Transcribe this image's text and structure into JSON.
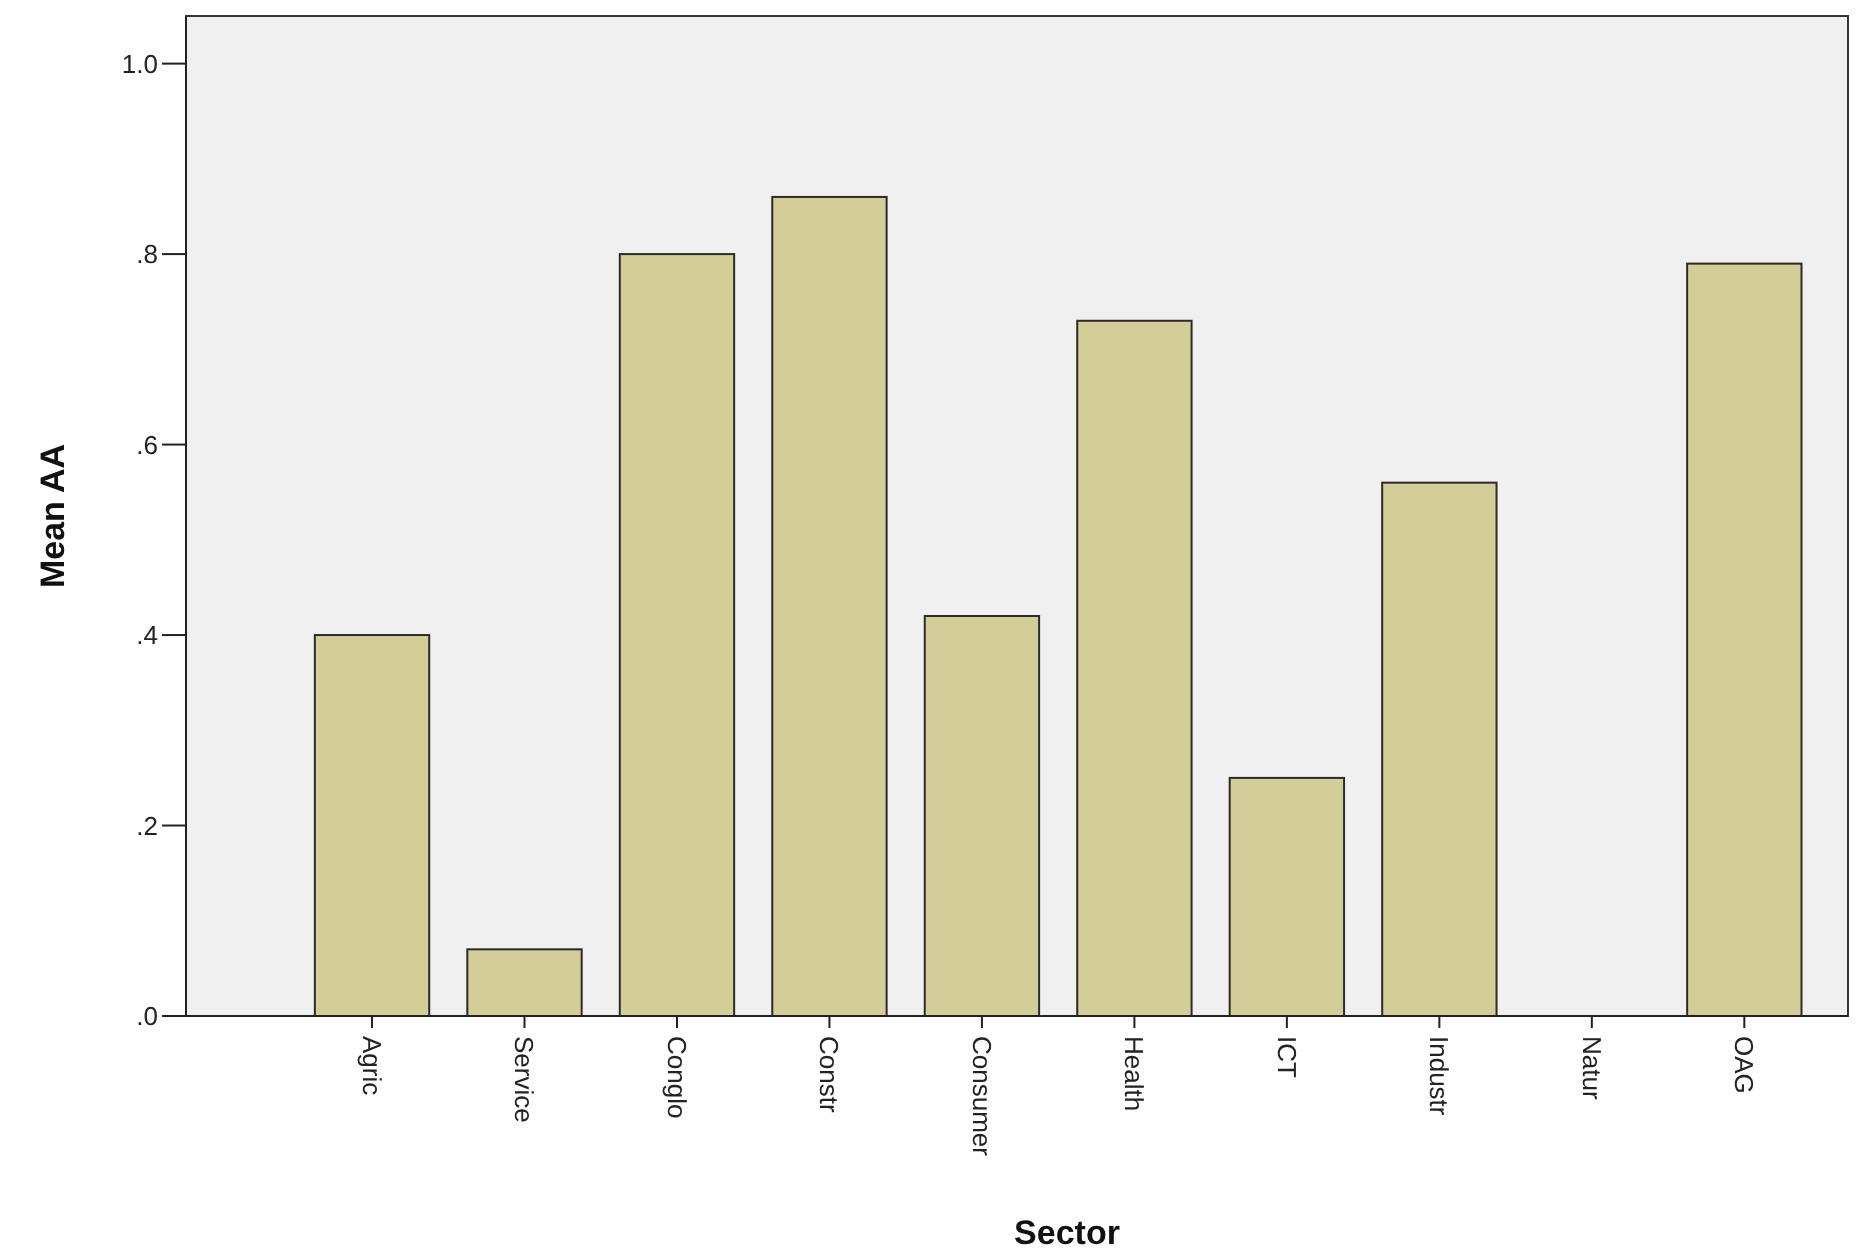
{
  "chart_data": {
    "type": "bar",
    "xlabel": "Sector",
    "ylabel": "Mean AA",
    "categories": [
      "Agric",
      "Service",
      "Conglo",
      "Constr",
      "Consumer",
      "Health",
      "ICT",
      "Industr",
      "Natur",
      "OAG"
    ],
    "values": [
      0.4,
      0.07,
      0.8,
      0.86,
      0.42,
      0.73,
      0.25,
      0.56,
      0,
      0.79
    ],
    "color": "#d3ce97",
    "ylim": [
      0,
      1.05
    ],
    "yticks": [
      {
        "value": 0,
        "label": ".0"
      },
      {
        "value": 0.2,
        "label": ".2"
      },
      {
        "value": 0.4,
        "label": ".4"
      },
      {
        "value": 0.6,
        "label": ".6"
      },
      {
        "value": 0.8,
        "label": ".8"
      },
      {
        "value": 1.0,
        "label": "1.0"
      }
    ],
    "grid": false
  }
}
